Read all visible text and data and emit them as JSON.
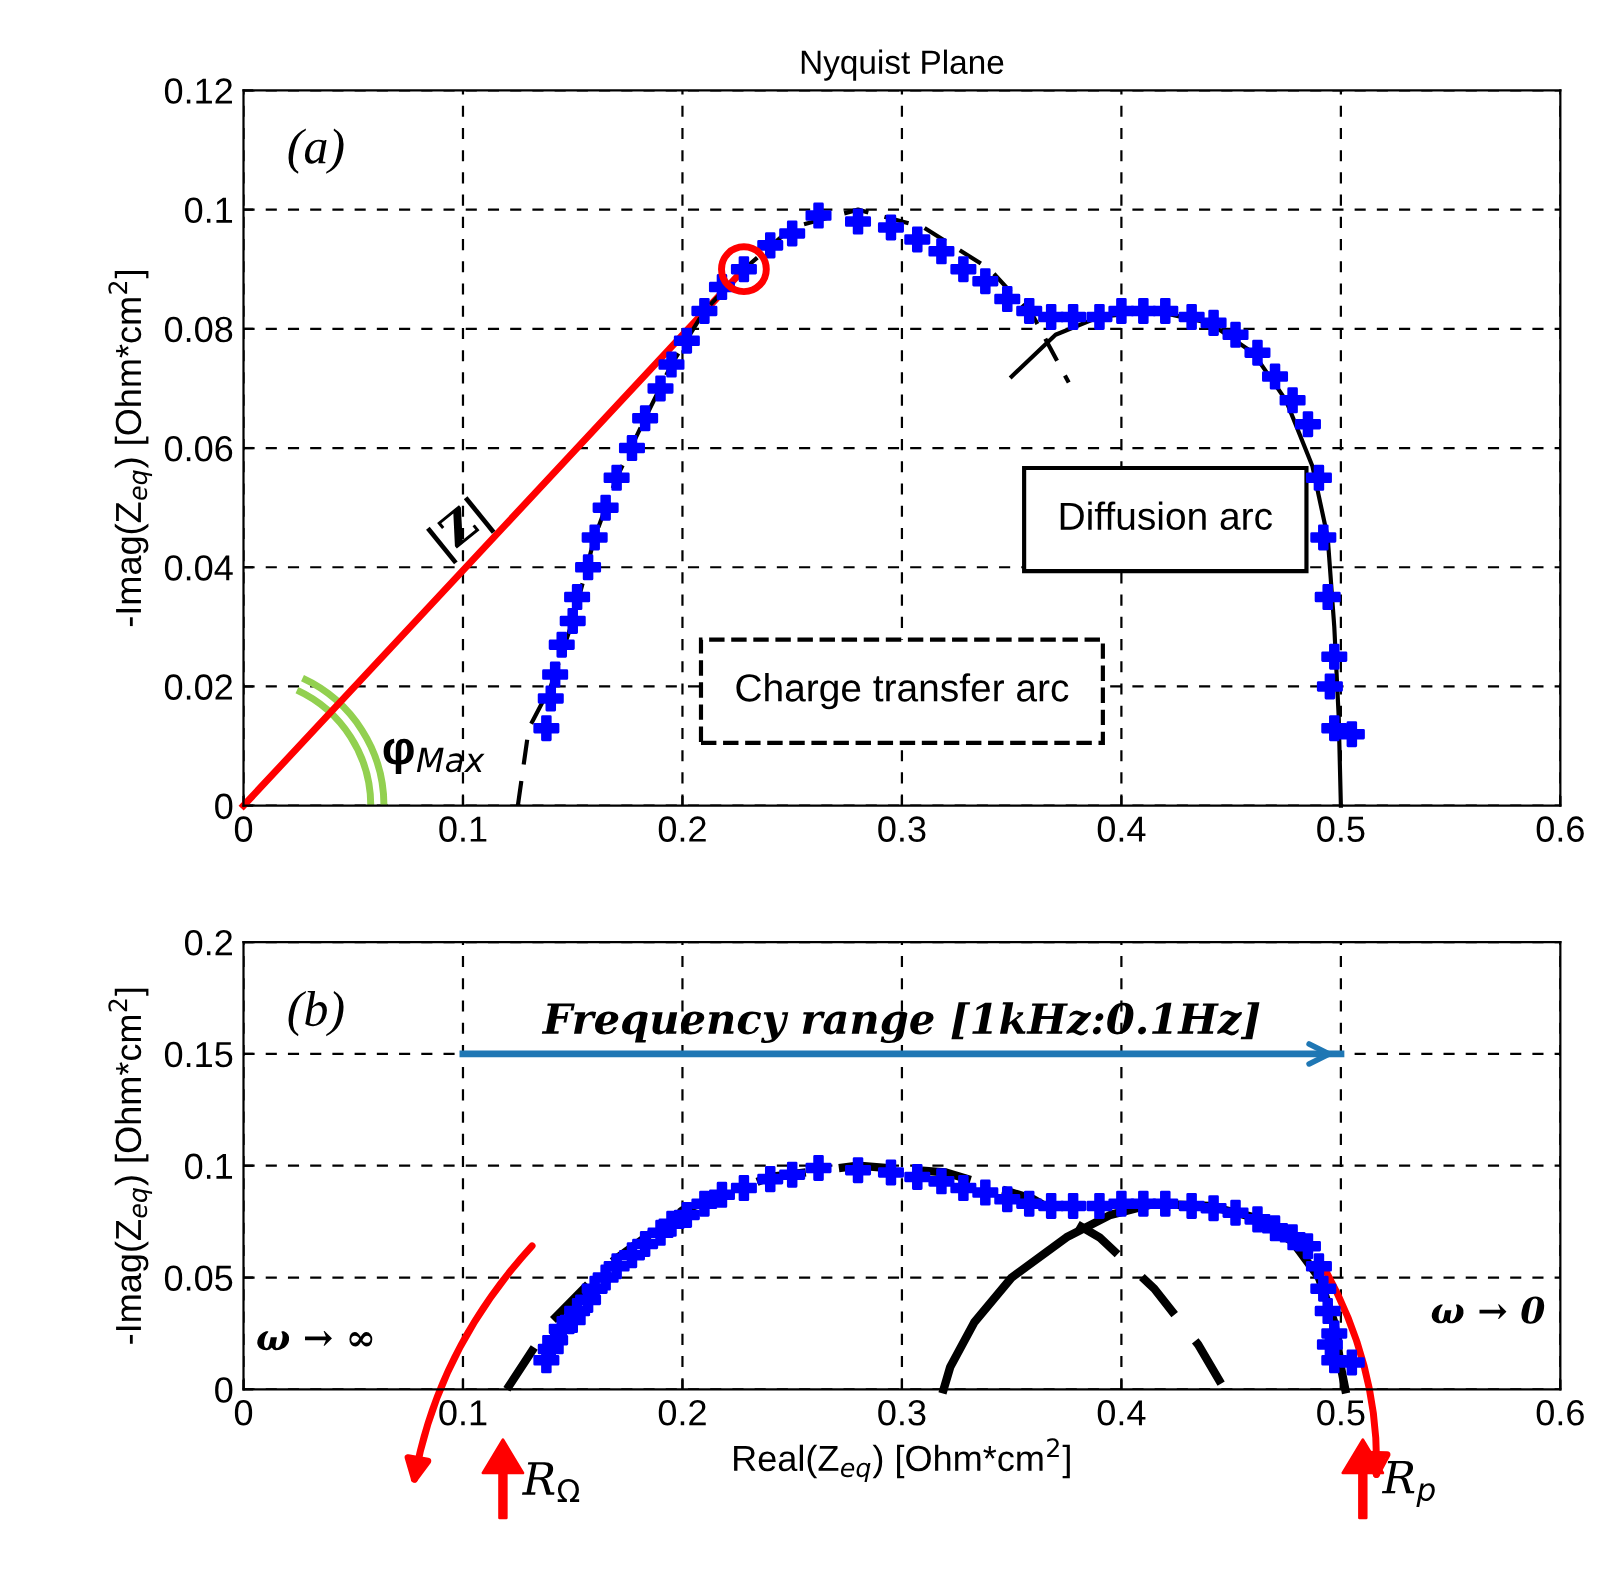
{
  "chart_data": [
    {
      "type": "scatter",
      "title": "Nyquist Plane",
      "ylabel": "-Imag(Z$_{eq}$) [Ohm*cm$^{2}$]",
      "xlim": [
        0,
        0.6
      ],
      "ylim": [
        0,
        0.12
      ],
      "xticks": [
        0,
        0.1,
        0.2,
        0.3,
        0.4,
        0.5,
        0.6
      ],
      "yticks": [
        0,
        0.02,
        0.04,
        0.06,
        0.08,
        0.1,
        0.12
      ],
      "grid": true,
      "series": [
        {
          "type": "line",
          "color": "#ff0000",
          "line_style": "solid",
          "x": [
            0,
            0.228
          ],
          "values": [
            0,
            0.09
          ]
        },
        {
          "color": "#ff0000",
          "marker": "circle",
          "x": [
            0.228
          ],
          "values": [
            0.09
          ]
        },
        {
          "type": "line",
          "color": "#000000",
          "line_style": "dashed",
          "x": [
            0.125,
            0.13,
            0.14,
            0.15,
            0.16,
            0.17,
            0.183,
            0.195,
            0.21,
            0.228,
            0.25,
            0.28,
            0.31,
            0.34,
            0.36,
            0.376
          ],
          "values": [
            0,
            0.013,
            0.02,
            0.031,
            0.045,
            0.055,
            0.065,
            0.074,
            0.083,
            0.09,
            0.097,
            0.1,
            0.097,
            0.09,
            0.082,
            0.071
          ]
        },
        {
          "type": "line",
          "color": "#000000",
          "line_style": "solid",
          "x": [
            0.35,
            0.37,
            0.39,
            0.415,
            0.44,
            0.46,
            0.475,
            0.487,
            0.494,
            0.497,
            0.499,
            0.5
          ],
          "values": [
            0.072,
            0.079,
            0.082,
            0.083,
            0.081,
            0.076,
            0.068,
            0.057,
            0.045,
            0.03,
            0.015,
            0
          ]
        },
        {
          "color": "#0000ff",
          "marker": "cross",
          "x": [
            0.138,
            0.14,
            0.142,
            0.145,
            0.15,
            0.152,
            0.157,
            0.16,
            0.165,
            0.17,
            0.177,
            0.183,
            0.19,
            0.195,
            0.202,
            0.21,
            0.218,
            0.228,
            0.24,
            0.25,
            0.262,
            0.28,
            0.295,
            0.307,
            0.318,
            0.328,
            0.338,
            0.348,
            0.358,
            0.368,
            0.378,
            0.39,
            0.4,
            0.41,
            0.42,
            0.432,
            0.442,
            0.452,
            0.462,
            0.47,
            0.478,
            0.485,
            0.49,
            0.492,
            0.494,
            0.497,
            0.495,
            0.497,
            0.505
          ],
          "values": [
            0.013,
            0.018,
            0.022,
            0.027,
            0.031,
            0.035,
            0.04,
            0.045,
            0.05,
            0.055,
            0.06,
            0.065,
            0.07,
            0.074,
            0.078,
            0.083,
            0.087,
            0.09,
            0.094,
            0.096,
            0.099,
            0.098,
            0.097,
            0.095,
            0.093,
            0.09,
            0.088,
            0.085,
            0.083,
            0.082,
            0.082,
            0.082,
            0.083,
            0.083,
            0.083,
            0.082,
            0.081,
            0.079,
            0.076,
            0.072,
            0.068,
            0.064,
            0.055,
            0.045,
            0.035,
            0.025,
            0.02,
            0.013,
            0.012
          ]
        }
      ],
      "annotations": [
        "(a)",
        "|Z|",
        "φ$_{Max}$",
        "Diffusion arc",
        "Charge transfer arc"
      ]
    },
    {
      "type": "scatter",
      "xlabel": "Real(Z$_{eq}$) [Ohm*cm$^{2}$]",
      "ylabel": "-Imag(Z$_{eq}$) [Ohm*cm$^{2}$]",
      "xlim": [
        0,
        0.6
      ],
      "ylim": [
        0,
        0.2
      ],
      "xticks": [
        0,
        0.1,
        0.2,
        0.3,
        0.4,
        0.5,
        0.6
      ],
      "yticks": [
        0,
        0.05,
        0.1,
        0.15,
        0.2
      ],
      "grid": true,
      "series": [
        {
          "type": "line",
          "color": "#1f77b4",
          "line_style": "solid",
          "x": [
            0.1,
            0.5
          ],
          "values": [
            0.15,
            0.15
          ]
        },
        {
          "color": "#0000ff",
          "marker": "cross",
          "x": [
            0.138,
            0.14,
            0.142,
            0.145,
            0.15,
            0.152,
            0.157,
            0.16,
            0.165,
            0.17,
            0.177,
            0.183,
            0.19,
            0.195,
            0.202,
            0.21,
            0.218,
            0.228,
            0.24,
            0.25,
            0.262,
            0.28,
            0.295,
            0.307,
            0.318,
            0.328,
            0.338,
            0.348,
            0.358,
            0.368,
            0.378,
            0.39,
            0.4,
            0.41,
            0.42,
            0.432,
            0.442,
            0.452,
            0.462,
            0.47,
            0.478,
            0.485,
            0.49,
            0.492,
            0.494,
            0.497,
            0.495,
            0.497,
            0.505
          ],
          "values": [
            0.013,
            0.018,
            0.022,
            0.027,
            0.031,
            0.035,
            0.04,
            0.045,
            0.05,
            0.055,
            0.06,
            0.065,
            0.07,
            0.074,
            0.078,
            0.083,
            0.087,
            0.09,
            0.094,
            0.096,
            0.099,
            0.098,
            0.097,
            0.095,
            0.093,
            0.09,
            0.088,
            0.085,
            0.083,
            0.082,
            0.082,
            0.082,
            0.083,
            0.083,
            0.083,
            0.082,
            0.081,
            0.079,
            0.076,
            0.072,
            0.068,
            0.064,
            0.055,
            0.045,
            0.035,
            0.025,
            0.02,
            0.013,
            0.012
          ]
        },
        {
          "type": "line",
          "color": "#000000",
          "line_style": "dashed",
          "x": [
            0.12,
            0.14,
            0.165,
            0.2,
            0.24,
            0.28,
            0.32,
            0.36,
            0.39,
            0.415,
            0.435,
            0.447
          ],
          "values": [
            0,
            0.03,
            0.055,
            0.08,
            0.095,
            0.1,
            0.097,
            0.085,
            0.068,
            0.045,
            0.02,
            0
          ]
        },
        {
          "type": "line",
          "color": "#000000",
          "line_style": "solid",
          "x": [
            0.319,
            0.322,
            0.333,
            0.35,
            0.375,
            0.395,
            0.415,
            0.44,
            0.46,
            0.478,
            0.49,
            0.497,
            0.5,
            0.502
          ],
          "values": [
            0,
            0.01,
            0.03,
            0.05,
            0.068,
            0.078,
            0.083,
            0.082,
            0.077,
            0.066,
            0.05,
            0.03,
            0.01,
            0
          ]
        }
      ],
      "annotations": [
        "(b)",
        "Frequency range [1kHz:0.1Hz]",
        "ω → ∞",
        "ω → 0",
        "R$_{Ω}$",
        "R$_{p}$"
      ]
    }
  ]
}
